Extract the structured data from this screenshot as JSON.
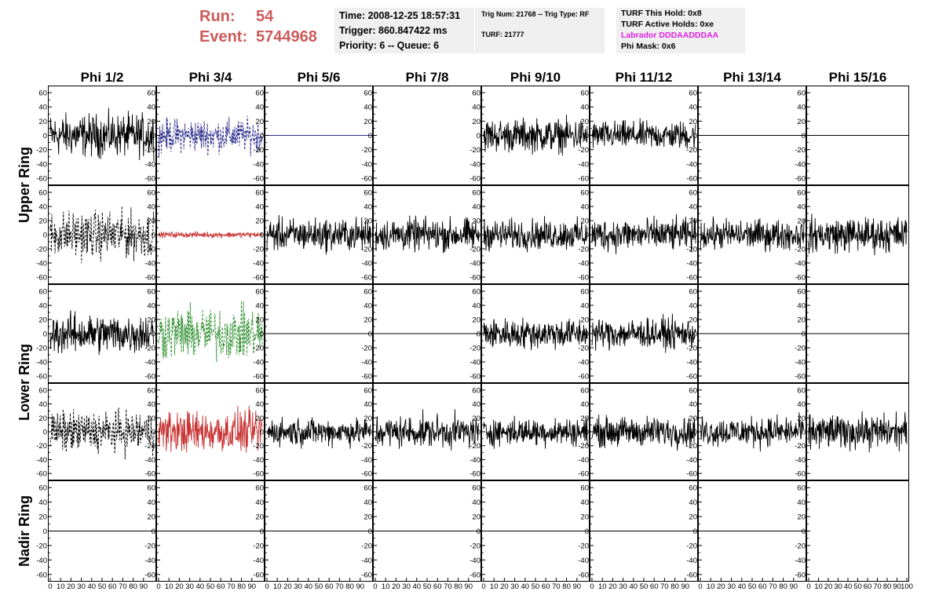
{
  "run": {
    "run_label": "Run:",
    "run_value": "54",
    "event_label": "Event:",
    "event_value": "5744968"
  },
  "info1": {
    "time": "Time: 2008-12-25 18:57:31",
    "trigger": "Trigger: 860.847422 ms",
    "priority": "Priority: 6 -- Queue: 6"
  },
  "info2": {
    "trig": "Trig Num: 21768 -- Trig Type: RF",
    "turf": "TURF: 21777"
  },
  "info3": {
    "hold": "TURF This Hold: 0x8",
    "active": "TURF Active Holds: 0xe",
    "labrador": "Labrador DDDAADDDAA",
    "mask": "Phi Mask: 0x6"
  },
  "colors": {
    "run_text": "#cd5a5a",
    "labrador_text": "#e020e0",
    "info_bg": "#efefef",
    "black": "#000000",
    "blue": "#2a2a8c",
    "red": "#c83232",
    "green": "#2f8f2f"
  },
  "chart_data": {
    "type": "line",
    "columns": [
      "Phi 1/2",
      "Phi 3/4",
      "Phi 5/6",
      "Phi 7/8",
      "Phi 9/10",
      "Phi 11/12",
      "Phi 13/14",
      "Phi 15/16"
    ],
    "row_labels": [
      {
        "text": "Upper Ring",
        "rows": [
          0,
          1
        ]
      },
      {
        "text": "Lower Ring",
        "rows": [
          2,
          3
        ]
      },
      {
        "text": "Nadir Ring",
        "rows": [
          4,
          4
        ]
      }
    ],
    "xlim": [
      0,
      100
    ],
    "ylim": [
      -70,
      70
    ],
    "x_ticks": [
      0,
      10,
      20,
      30,
      40,
      50,
      60,
      70,
      80,
      90,
      100
    ],
    "y_ticks": [
      -60,
      -40,
      -20,
      0,
      20,
      40,
      60
    ],
    "panels": [
      [
        {
          "style": "noise",
          "amp": 18,
          "color": "black",
          "dash": false
        },
        {
          "style": "noise",
          "amp": 14,
          "color": "blue",
          "dash": true
        },
        {
          "style": "flat",
          "color": "blue",
          "dash": false
        },
        {
          "style": "none"
        },
        {
          "style": "noise",
          "amp": 14,
          "color": "black",
          "dash": false
        },
        {
          "style": "noise",
          "amp": 12,
          "color": "black",
          "dash": false
        },
        {
          "style": "flat",
          "color": "black",
          "dash": false
        },
        {
          "style": "flat",
          "color": "black",
          "dash": false
        }
      ],
      [
        {
          "style": "noise",
          "amp": 20,
          "color": "black",
          "dash": true
        },
        {
          "style": "noise",
          "amp": 2.5,
          "color": "red",
          "dash": false
        },
        {
          "style": "noise",
          "amp": 14,
          "color": "black",
          "dash": false
        },
        {
          "style": "noise",
          "amp": 14,
          "color": "black",
          "dash": false
        },
        {
          "style": "noise",
          "amp": 13,
          "color": "black",
          "dash": false
        },
        {
          "style": "noise",
          "amp": 14,
          "color": "black",
          "dash": false
        },
        {
          "style": "noise",
          "amp": 13,
          "color": "black",
          "dash": false
        },
        {
          "style": "noise",
          "amp": 15,
          "color": "black",
          "dash": false
        }
      ],
      [
        {
          "style": "noise",
          "amp": 17,
          "color": "black",
          "dash": false
        },
        {
          "style": "noise",
          "amp": 22,
          "color": "green",
          "dash": true
        },
        {
          "style": "flat",
          "color": "black",
          "dash": false
        },
        {
          "style": "flat",
          "color": "black",
          "dash": false
        },
        {
          "style": "noise",
          "amp": 13,
          "color": "black",
          "dash": false
        },
        {
          "style": "noise",
          "amp": 13,
          "color": "black",
          "dash": false
        },
        {
          "style": "flat",
          "color": "black",
          "dash": false
        },
        {
          "style": "flat",
          "color": "black",
          "dash": false
        }
      ],
      [
        {
          "style": "noise",
          "amp": 18,
          "color": "black",
          "dash": true
        },
        {
          "style": "noise",
          "amp": 18,
          "color": "red",
          "dash": false
        },
        {
          "style": "noise",
          "amp": 12,
          "color": "black",
          "dash": false
        },
        {
          "style": "noise",
          "amp": 14,
          "color": "black",
          "dash": false
        },
        {
          "style": "noise",
          "amp": 12,
          "color": "black",
          "dash": false
        },
        {
          "style": "noise",
          "amp": 13,
          "color": "black",
          "dash": false
        },
        {
          "style": "noise",
          "amp": 13,
          "color": "black",
          "dash": false
        },
        {
          "style": "noise",
          "amp": 15,
          "color": "black",
          "dash": false
        }
      ],
      [
        {
          "style": "flat",
          "color": "black",
          "dash": false
        },
        {
          "style": "flat",
          "color": "black",
          "dash": false
        },
        {
          "style": "flat",
          "color": "black",
          "dash": false
        },
        {
          "style": "flat",
          "color": "black",
          "dash": false
        },
        {
          "style": "flat",
          "color": "black",
          "dash": false
        },
        {
          "style": "flat",
          "color": "black",
          "dash": false
        },
        {
          "style": "flat",
          "color": "black",
          "dash": false
        },
        {
          "style": "none"
        }
      ]
    ]
  }
}
